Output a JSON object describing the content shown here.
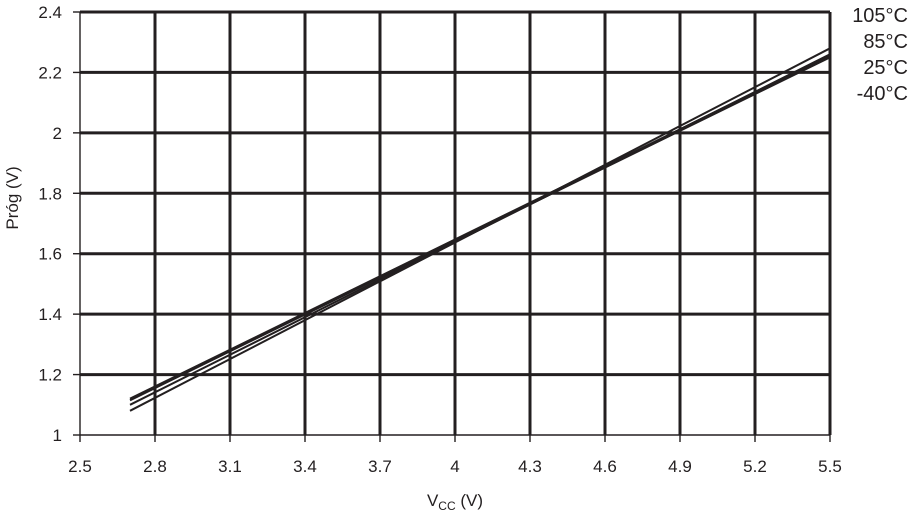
{
  "chart_data": {
    "type": "line",
    "title": "",
    "xlabel": {
      "main": "V",
      "sub": "CC",
      "unit": " (V)"
    },
    "ylabel": "Próg (V)",
    "xlim": [
      2.5,
      5.5
    ],
    "ylim": [
      1,
      2.4
    ],
    "xticks": [
      "2.5",
      "2.8",
      "3.1",
      "3.4",
      "3.7",
      "4",
      "4.3",
      "4.6",
      "4.9",
      "5.2",
      "5.5"
    ],
    "yticks": [
      "1",
      "1.2",
      "1.4",
      "1.6",
      "1.8",
      "2",
      "2.2",
      "2.4"
    ],
    "grid": true,
    "legend_position": "top-right",
    "colors": {
      "line": "#231f20",
      "grid": "#231f20",
      "background": "#ffffff"
    },
    "series": [
      {
        "name": "105°C",
        "x": [
          2.7,
          5.5
        ],
        "y": [
          1.08,
          2.28
        ]
      },
      {
        "name": "85°C",
        "x": [
          2.7,
          5.5
        ],
        "y": [
          1.1,
          2.26
        ]
      },
      {
        "name": "25°C",
        "x": [
          2.7,
          5.5
        ],
        "y": [
          1.115,
          2.25
        ]
      },
      {
        "name": "-40°C",
        "x": [
          2.7,
          5.5
        ],
        "y": [
          1.12,
          2.255
        ]
      }
    ]
  }
}
